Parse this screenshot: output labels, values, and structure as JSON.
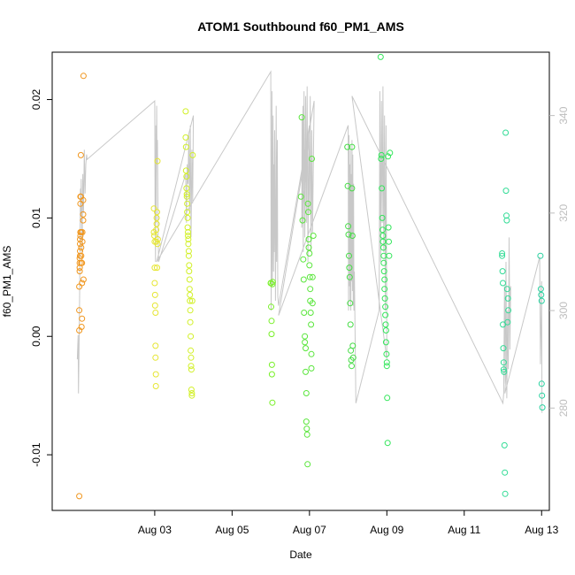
{
  "chart_data": {
    "type": "scatter",
    "title": "ATOM1 Southbound f60_PM1_AMS",
    "xlabel": "Date",
    "ylabel": "f60_PM1_AMS",
    "y2label": "",
    "xlim": [
      0.35,
      13.2
    ],
    "ylim": [
      -0.0147,
      0.024
    ],
    "y2lim": [
      259,
      353
    ],
    "x_ticks": [
      {
        "value": 3,
        "label": "Aug 03"
      },
      {
        "value": 5,
        "label": "Aug 05"
      },
      {
        "value": 7,
        "label": "Aug 07"
      },
      {
        "value": 9,
        "label": "Aug 09"
      },
      {
        "value": 11,
        "label": "Aug 11"
      },
      {
        "value": 13,
        "label": "Aug 13"
      }
    ],
    "y_ticks": [
      {
        "value": -0.01,
        "label": "-0.01"
      },
      {
        "value": 0.0,
        "label": "0.00"
      },
      {
        "value": 0.01,
        "label": "0.01"
      },
      {
        "value": 0.02,
        "label": "0.02"
      }
    ],
    "y2_ticks": [
      {
        "value": 280,
        "label": "280"
      },
      {
        "value": 300,
        "label": "300"
      },
      {
        "value": 320,
        "label": "320"
      },
      {
        "value": 340,
        "label": "340"
      }
    ],
    "colors": {
      "line": "#c8c8c8",
      "axis": "#000000",
      "right_axis": "#bdbdbd"
    },
    "point_style": "open-circle",
    "series": [
      {
        "color": "#f0961e",
        "x": [
          1.05,
          1.05,
          1.05,
          1.05,
          1.06,
          1.06,
          1.06,
          1.06,
          1.07,
          1.07,
          1.07,
          1.07,
          1.08,
          1.08,
          1.08,
          1.08,
          1.09,
          1.09,
          1.1,
          1.1,
          1.1,
          1.1,
          1.11,
          1.12,
          1.12,
          1.12,
          1.13,
          1.13,
          1.15,
          1.15,
          1.15,
          1.16,
          1.16
        ],
        "y": [
          -0.0135,
          0.0005,
          0.0022,
          0.0042,
          0.0055,
          0.0058,
          0.0062,
          0.0066,
          0.0068,
          0.0072,
          0.0078,
          0.0082,
          0.0085,
          0.0088,
          0.0112,
          0.0118,
          0.0118,
          0.0153,
          0.0062,
          0.0068,
          0.0075,
          0.0088,
          0.0008,
          0.0015,
          0.0045,
          0.0062,
          0.008,
          0.0088,
          0.0098,
          0.0103,
          0.0115,
          0.022,
          0.0048
        ]
      },
      {
        "color": "#e6e632",
        "x": [
          2.98,
          2.98,
          2.99,
          3.0,
          3.0,
          3.0,
          3.01,
          3.01,
          3.02,
          3.02,
          3.02,
          3.03,
          3.03,
          3.04,
          3.04,
          3.05,
          3.05,
          3.06,
          3.06,
          3.07,
          3.07,
          3.08
        ],
        "y": [
          0.0108,
          0.0088,
          0.0085,
          0.008,
          0.0058,
          0.0045,
          0.0035,
          0.0026,
          0.002,
          -0.0008,
          -0.0018,
          -0.0032,
          -0.0042,
          0.008,
          0.009,
          0.0095,
          0.01,
          0.0105,
          0.0058,
          0.0148,
          0.0078,
          0.0082
        ]
      },
      {
        "color": "#d2f028",
        "x": [
          3.8,
          3.8,
          3.81,
          3.81,
          3.82,
          3.82,
          3.83,
          3.83,
          3.84,
          3.84,
          3.85,
          3.85,
          3.86,
          3.86,
          3.87,
          3.87,
          3.88,
          3.88,
          3.89,
          3.89,
          3.9,
          3.9,
          3.91,
          3.91,
          3.92,
          3.92,
          3.93,
          3.93,
          3.94,
          3.94,
          3.95,
          3.95,
          3.96,
          3.96,
          3.97,
          3.98
        ],
        "y": [
          0.019,
          0.0168,
          0.016,
          0.014,
          0.0135,
          0.0125,
          0.012,
          0.0118,
          0.0112,
          0.0105,
          0.01,
          0.0092,
          0.0088,
          0.0085,
          0.0082,
          0.0078,
          0.0072,
          0.0068,
          0.006,
          0.0055,
          0.0048,
          0.004,
          0.0035,
          0.003,
          0.0022,
          0.0012,
          0.0,
          -0.0012,
          -0.0018,
          -0.0025,
          -0.0028,
          -0.0045,
          -0.005,
          -0.0048,
          0.003,
          0.0153
        ]
      },
      {
        "color": "#78f028",
        "x": [
          6.0,
          6.0,
          6.01,
          6.02,
          6.02,
          6.03,
          6.03,
          6.04,
          6.04,
          6.05
        ],
        "y": [
          0.0045,
          0.0045,
          0.0025,
          0.0013,
          0.0002,
          -0.0024,
          -0.0032,
          -0.0056,
          0.0044,
          0.0046
        ]
      },
      {
        "color": "#5ae63c",
        "x": [
          6.78,
          6.8,
          6.82,
          6.84,
          6.85,
          6.86,
          6.88,
          6.88,
          6.9,
          6.9,
          6.92,
          6.92,
          6.93,
          6.94,
          6.95,
          6.96,
          6.97,
          6.98,
          6.98,
          7.0,
          7.0,
          7.01,
          7.02,
          7.02,
          7.03,
          7.04,
          7.05,
          7.05,
          7.06,
          7.08,
          7.08,
          7.1
        ],
        "y": [
          0.0118,
          0.0185,
          0.0098,
          0.0065,
          0.0048,
          0.002,
          0.0,
          -0.0005,
          -0.001,
          -0.003,
          -0.0048,
          -0.0072,
          -0.0078,
          -0.0083,
          -0.0108,
          0.0112,
          0.0105,
          0.0082,
          0.0075,
          0.007,
          0.006,
          0.005,
          0.004,
          0.003,
          0.002,
          0.001,
          -0.0015,
          -0.0027,
          0.015,
          0.0028,
          0.005,
          0.0085
        ]
      },
      {
        "color": "#46dc46",
        "x": [
          7.98,
          7.99,
          8.0,
          8.01,
          8.02,
          8.03,
          8.04,
          8.05,
          8.06,
          8.07,
          8.08,
          8.09,
          8.1,
          8.1,
          8.11,
          8.12,
          8.13
        ],
        "y": [
          0.016,
          0.0127,
          0.0093,
          0.0086,
          0.0068,
          0.0058,
          0.005,
          0.0028,
          0.001,
          -0.0012,
          -0.002,
          -0.0025,
          0.016,
          0.0125,
          0.0085,
          -0.0008,
          -0.0018
        ]
      },
      {
        "color": "#32e65a",
        "x": [
          8.84,
          8.85,
          8.86,
          8.87,
          8.88,
          8.89,
          8.9,
          8.9,
          8.91,
          8.92,
          8.92,
          8.93,
          8.94,
          8.94,
          8.95,
          8.96,
          8.96,
          8.97,
          8.98,
          8.98,
          8.99,
          9.0,
          9.0,
          9.01,
          9.02,
          9.03,
          9.04,
          9.05,
          9.06,
          9.08
        ],
        "y": [
          0.0236,
          0.015,
          0.0153,
          0.0125,
          0.01,
          0.009,
          0.0085,
          0.008,
          0.0075,
          0.0068,
          0.0062,
          0.0055,
          0.0048,
          0.004,
          0.0032,
          0.0025,
          0.0018,
          0.001,
          0.0005,
          -0.0005,
          -0.0015,
          -0.0022,
          -0.0025,
          -0.0052,
          -0.009,
          0.0152,
          0.0092,
          0.008,
          0.0068,
          0.0155
        ]
      },
      {
        "color": "#32dc96",
        "x": [
          11.98,
          11.98,
          11.99,
          12.0,
          12.0,
          12.01,
          12.02,
          12.02,
          12.03,
          12.04,
          12.05,
          12.06,
          12.07,
          12.08,
          12.09,
          12.1,
          12.11,
          12.12,
          12.13,
          12.14
        ],
        "y": [
          0.007,
          0.0068,
          0.0055,
          0.0045,
          0.001,
          -0.001,
          -0.0022,
          -0.0028,
          -0.003,
          -0.0092,
          -0.0115,
          -0.0133,
          0.0172,
          0.0123,
          0.0102,
          0.0098,
          0.004,
          0.0012,
          0.0032,
          0.0022
        ]
      },
      {
        "color": "#28d2a0",
        "x": [
          12.97,
          12.98,
          12.99,
          13.0,
          13.0,
          13.01,
          13.02
        ],
        "y": [
          0.0068,
          0.004,
          0.0035,
          0.003,
          -0.004,
          -0.005,
          -0.006
        ]
      }
    ],
    "line_series": {
      "axis": "right",
      "color": "#c8c8c8",
      "x": [
        1.0,
        1.02,
        1.03,
        1.04,
        1.05,
        1.06,
        1.07,
        1.08,
        1.09,
        1.1,
        1.12,
        1.14,
        1.16,
        1.18,
        1.2,
        1.22,
        1.24,
        1.25,
        3.0,
        3.01,
        3.02,
        3.03,
        3.04,
        3.05,
        3.06,
        3.07,
        3.08,
        3.09,
        3.1,
        3.8,
        3.82,
        3.84,
        3.86,
        3.88,
        3.9,
        3.92,
        3.94,
        3.96,
        3.98,
        4.0,
        3.05,
        6.0,
        6.01,
        6.02,
        6.03,
        6.04,
        6.05,
        6.06,
        6.07,
        6.08,
        6.09,
        6.1,
        6.12,
        6.13,
        6.14,
        6.15,
        6.16,
        6.17,
        6.18,
        6.2,
        7.0,
        6.8,
        6.81,
        6.82,
        6.83,
        6.84,
        6.86,
        6.88,
        6.9,
        6.92,
        6.94,
        6.96,
        6.98,
        7.0,
        7.02,
        7.04,
        7.06,
        7.08,
        7.1,
        7.12,
        6.2,
        8.0,
        8.01,
        8.02,
        8.03,
        8.04,
        8.05,
        8.06,
        8.07,
        8.08,
        8.09,
        8.1,
        8.11,
        8.12,
        8.13,
        8.14,
        8.15,
        8.16,
        8.2,
        8.8,
        8.82,
        8.84,
        8.86,
        8.88,
        8.9,
        8.92,
        8.94,
        8.96,
        8.98,
        9.0,
        8.1,
        12.0,
        12.02,
        12.04,
        12.06,
        12.08,
        12.1,
        12.12,
        12.14,
        12.16,
        12.18,
        12.2,
        12.05,
        12.95,
        12.97,
        12.99,
        13.0,
        13.01
      ],
      "y": [
        290,
        295,
        283,
        290,
        296,
        305,
        315,
        325,
        320,
        327,
        312,
        328,
        320,
        333,
        324,
        330,
        332,
        331,
        343,
        320,
        310,
        338,
        318,
        342,
        330,
        335,
        325,
        315,
        310,
        328,
        318,
        330,
        326,
        336,
        320,
        338,
        315,
        333,
        322,
        340,
        310,
        349,
        300,
        315,
        345,
        305,
        320,
        340,
        308,
        330,
        312,
        337,
        302,
        318,
        342,
        310,
        325,
        335,
        303,
        301,
        338,
        317,
        340,
        320,
        342,
        312,
        345,
        315,
        344,
        318,
        346,
        310,
        336,
        320,
        344,
        312,
        337,
        316,
        330,
        343,
        299,
        338,
        300,
        336,
        305,
        330,
        302,
        333,
        300,
        328,
        306,
        335,
        304,
        332,
        301,
        326,
        300,
        308,
        281,
        300,
        345,
        310,
        343,
        318,
        346,
        312,
        340,
        300,
        338,
        290,
        344,
        281,
        283,
        305,
        285,
        310,
        282,
        300,
        288,
        315,
        292,
        305,
        283,
        311,
        289,
        299,
        306,
        279
      ]
    }
  }
}
